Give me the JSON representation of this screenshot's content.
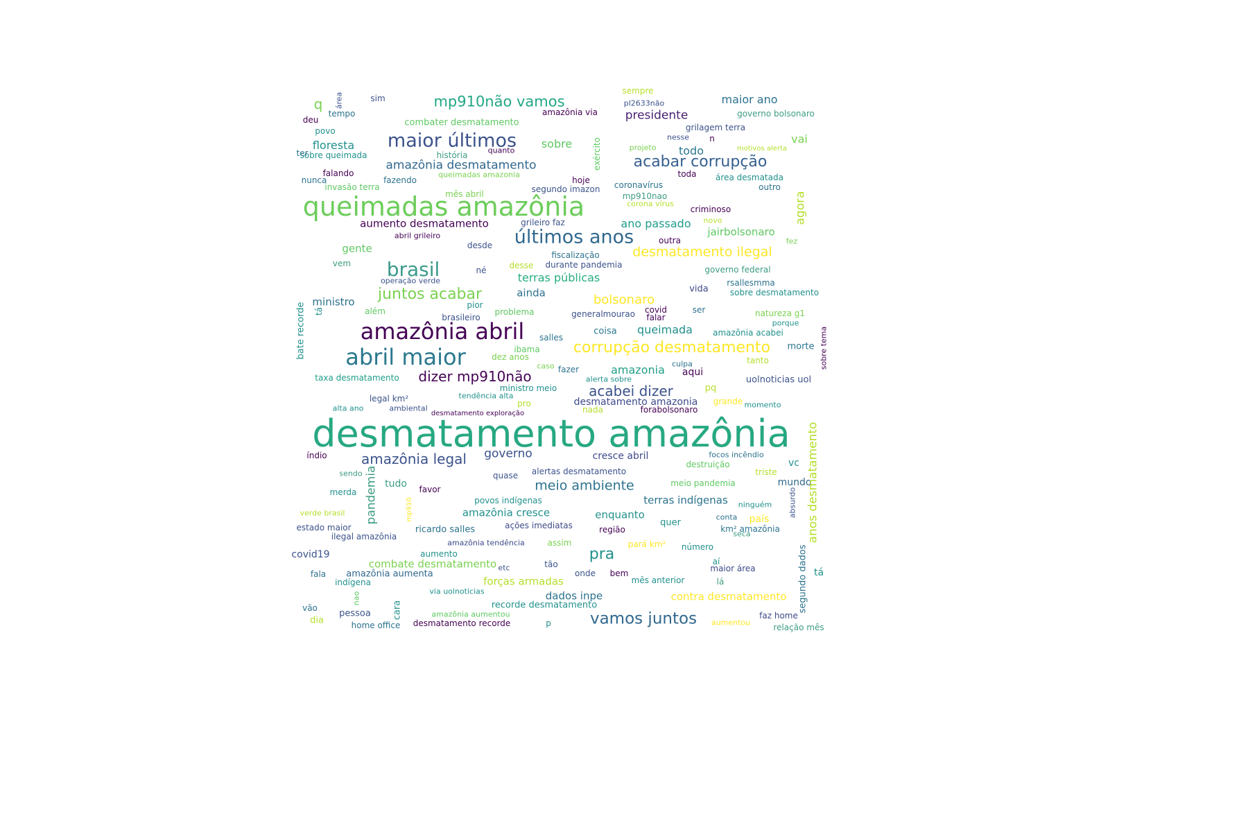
{
  "palette": {
    "c1": "#440154",
    "c2": "#472d7b",
    "c3": "#3b528b",
    "c4": "#2c728e",
    "c5": "#21918c",
    "c6": "#28ae80",
    "c7": "#5ec962",
    "c8": "#addc30",
    "c9": "#fde725"
  },
  "words": [
    {
      "text": "desmatamento amazônia",
      "c": "#27a882"
    },
    {
      "text": "queimadas amazônia",
      "c": "#6ccd5a"
    },
    {
      "text": "amazônia abril",
      "c": "#440154"
    },
    {
      "text": "abril maior",
      "c": "#2a788e"
    },
    {
      "text": "maior últimos",
      "c": "#3b528b"
    },
    {
      "text": "últimos anos",
      "c": "#31688e"
    },
    {
      "text": "brasil",
      "c": "#3a9a8a"
    },
    {
      "text": "corrupção desmatamento",
      "c": "#fde725"
    },
    {
      "text": "acabar corrupção",
      "c": "#355f8d"
    },
    {
      "text": "vamos juntos",
      "c": "#31688e"
    },
    {
      "text": "juntos acabar",
      "c": "#7ad151"
    },
    {
      "text": "mp910não vamos",
      "c": "#22a785"
    },
    {
      "text": "dizer mp910não",
      "c": "#440154"
    },
    {
      "text": "acabei dizer",
      "c": "#3b528b"
    },
    {
      "text": "amazônia legal",
      "c": "#3b528b"
    },
    {
      "text": "desmatamento ilegal",
      "c": "#fde725"
    },
    {
      "text": "pra",
      "c": "#21918c"
    },
    {
      "text": "meio ambiente",
      "c": "#2c728e"
    },
    {
      "text": "bolsonaro",
      "c": "#fde725"
    },
    {
      "text": "amazônia desmatamento",
      "c": "#31688e"
    },
    {
      "text": "presidente",
      "c": "#482173"
    },
    {
      "text": "maior ano",
      "c": "#2c728e"
    },
    {
      "text": "floresta",
      "c": "#21918c"
    },
    {
      "text": "sobre",
      "c": "#5ec962"
    },
    {
      "text": "todo",
      "c": "#2a788e"
    },
    {
      "text": "vai",
      "c": "#7ad151"
    },
    {
      "text": "q",
      "c": "#7ad151"
    },
    {
      "text": "governo",
      "c": "#3b528b"
    },
    {
      "text": "ano passado",
      "c": "#1f9e89"
    },
    {
      "text": "aumento desmatamento",
      "c": "#440154"
    },
    {
      "text": "jairbolsonaro",
      "c": "#5ec962"
    },
    {
      "text": "terras públicas",
      "c": "#27ad81"
    },
    {
      "text": "ainda",
      "c": "#2c728e"
    },
    {
      "text": "queimada",
      "c": "#21918c"
    },
    {
      "text": "amazonia",
      "c": "#1f9e89"
    },
    {
      "text": "desmatamento amazonia",
      "c": "#3e4a89"
    },
    {
      "text": "terras indígenas",
      "c": "#2c728e"
    },
    {
      "text": "amazônia cresce",
      "c": "#21918c"
    },
    {
      "text": "enquanto",
      "c": "#21918c"
    },
    {
      "text": "forças armadas",
      "c": "#b5de2b"
    },
    {
      "text": "dados inpe",
      "c": "#2c728e"
    },
    {
      "text": "contra desmatamento",
      "c": "#fde725"
    },
    {
      "text": "combate desmatamento",
      "c": "#7ad151"
    },
    {
      "text": "recorde desmatamento",
      "c": "#21918c"
    },
    {
      "text": "amazônia aumenta",
      "c": "#31688e"
    },
    {
      "text": "ilegal amazônia",
      "c": "#3b528b"
    },
    {
      "text": "ricardo salles",
      "c": "#2c728e"
    },
    {
      "text": "covid19",
      "c": "#3b528b"
    },
    {
      "text": "tudo",
      "c": "#3e9c83"
    },
    {
      "text": "mundo",
      "c": "#31688e"
    },
    {
      "text": "vc",
      "c": "#21918c"
    },
    {
      "text": "cresce abril",
      "c": "#3e4a89"
    },
    {
      "text": "combater desmatamento",
      "c": "#5ec962"
    },
    {
      "text": "gente",
      "c": "#5ec962"
    },
    {
      "text": "ministro",
      "c": "#2c728e"
    },
    {
      "text": "aqui",
      "c": "#440154"
    },
    {
      "text": "coisa",
      "c": "#2a788e"
    },
    {
      "text": "amazônia acabei",
      "c": "#21918c"
    },
    {
      "text": "natureza g1",
      "c": "#7ad151"
    },
    {
      "text": "morte",
      "c": "#2c728e"
    },
    {
      "text": "uolnoticias uol",
      "c": "#3b528b"
    },
    {
      "text": "taxa desmatamento",
      "c": "#1f9e89"
    },
    {
      "text": "governo federal",
      "c": "#3e9c83"
    },
    {
      "text": "rsallesmma",
      "c": "#2c728e"
    },
    {
      "text": "sobre desmatamento",
      "c": "#21918c"
    },
    {
      "text": "vida",
      "c": "#3e4a89"
    },
    {
      "text": "pq",
      "c": "#b5de2b"
    },
    {
      "text": "grande",
      "c": "#fde725"
    },
    {
      "text": "país",
      "c": "#fde725"
    },
    {
      "text": "dia",
      "c": "#b5de2b"
    },
    {
      "text": "pessoa",
      "c": "#3b528b"
    },
    {
      "text": "tá",
      "c": "#21918c"
    },
    {
      "text": "região",
      "c": "#440154"
    },
    {
      "text": "quer",
      "c": "#21918c"
    },
    {
      "text": "meio pandemia",
      "c": "#5ec962"
    },
    {
      "text": "destruição",
      "c": "#5ec962"
    },
    {
      "text": "focos incêndio",
      "c": "#2c728e"
    },
    {
      "text": "alertas desmatamento",
      "c": "#3b528b"
    },
    {
      "text": "povos indígenas",
      "c": "#21918c"
    },
    {
      "text": "ações imediatas",
      "c": "#3e4a89"
    },
    {
      "text": "quase",
      "c": "#3b528b"
    },
    {
      "text": "favor",
      "c": "#440154"
    },
    {
      "text": "merda",
      "c": "#21918c"
    },
    {
      "text": "sendo",
      "c": "#3e9c83"
    },
    {
      "text": "índio",
      "c": "#440154"
    },
    {
      "text": "verde brasil",
      "c": "#b5de2b"
    },
    {
      "text": "estado maior",
      "c": "#3b528b"
    },
    {
      "text": "fala",
      "c": "#2c728e"
    },
    {
      "text": "indígena",
      "c": "#21918c"
    },
    {
      "text": "vão",
      "c": "#2c728e"
    },
    {
      "text": "home office",
      "c": "#2c728e"
    },
    {
      "text": "desmatamento recorde",
      "c": "#440154"
    },
    {
      "text": "amazônia aumentou",
      "c": "#5ec962"
    },
    {
      "text": "via uolnoticias",
      "c": "#21918c"
    },
    {
      "text": "faz home",
      "c": "#3e4a89"
    },
    {
      "text": "aumentou",
      "c": "#fde725"
    },
    {
      "text": "relação mês",
      "c": "#3e9c83"
    },
    {
      "text": "segundo dados",
      "c": "#2c728e"
    },
    {
      "text": "mês anterior",
      "c": "#21918c"
    },
    {
      "text": "lá",
      "c": "#3e9c83"
    },
    {
      "text": "maior área",
      "c": "#3e4a89"
    },
    {
      "text": "aí",
      "c": "#21918c"
    },
    {
      "text": "número",
      "c": "#21918c"
    },
    {
      "text": "pará km²",
      "c": "#fde725"
    },
    {
      "text": "km² amazônia",
      "c": "#2c728e"
    },
    {
      "text": "conta",
      "c": "#2c728e"
    },
    {
      "text": "seca",
      "c": "#3e9c83"
    },
    {
      "text": "ninguém",
      "c": "#21918c"
    },
    {
      "text": "triste",
      "c": "#b5de2b"
    },
    {
      "text": "onde",
      "c": "#3b528b"
    },
    {
      "text": "bem",
      "c": "#440154"
    },
    {
      "text": "tão",
      "c": "#3b528b"
    },
    {
      "text": "etc",
      "c": "#3b528b"
    },
    {
      "text": "aumento",
      "c": "#21918c"
    },
    {
      "text": "assim",
      "c": "#7ad151"
    },
    {
      "text": "amazônia tendência",
      "c": "#3e4a89"
    },
    {
      "text": "p",
      "c": "#21918c"
    },
    {
      "text": "alta ano",
      "c": "#21918c"
    },
    {
      "text": "ambiental",
      "c": "#3b528b"
    },
    {
      "text": "legal km²",
      "c": "#3b528b"
    },
    {
      "text": "tendência alta",
      "c": "#21918c"
    },
    {
      "text": "desmatamento exploração",
      "c": "#440154"
    },
    {
      "text": "nada",
      "c": "#b5de2b"
    },
    {
      "text": "pro",
      "c": "#b5de2b"
    },
    {
      "text": "ministro meio",
      "c": "#21918c"
    },
    {
      "text": "alerta sobre",
      "c": "#21918c"
    },
    {
      "text": "fazer",
      "c": "#2c728e"
    },
    {
      "text": "caso",
      "c": "#7ad151"
    },
    {
      "text": "culpa",
      "c": "#2c728e"
    },
    {
      "text": "forabolsonaro",
      "c": "#440154"
    },
    {
      "text": "momento",
      "c": "#21918c"
    },
    {
      "text": "dez anos",
      "c": "#7ad151"
    },
    {
      "text": "ibama",
      "c": "#5ec962"
    },
    {
      "text": "salles",
      "c": "#2c728e"
    },
    {
      "text": "tanto",
      "c": "#b5de2b"
    },
    {
      "text": "porque",
      "c": "#21918c"
    },
    {
      "text": "generalmourao",
      "c": "#3b528b"
    },
    {
      "text": "falar",
      "c": "#440154"
    },
    {
      "text": "covid",
      "c": "#440154"
    },
    {
      "text": "ser",
      "c": "#2c728e"
    },
    {
      "text": "brasileiro",
      "c": "#3b528b"
    },
    {
      "text": "problema",
      "c": "#5ec962"
    },
    {
      "text": "além",
      "c": "#5ec962"
    },
    {
      "text": "pior",
      "c": "#21918c"
    },
    {
      "text": "operação verde",
      "c": "#3b528b"
    },
    {
      "text": "desse",
      "c": "#b5de2b"
    },
    {
      "text": "durante pandemia",
      "c": "#3b528b"
    },
    {
      "text": "fiscalização",
      "c": "#2c728e"
    },
    {
      "text": "né",
      "c": "#3b528b"
    },
    {
      "text": "vem",
      "c": "#3e9c83"
    },
    {
      "text": "desde",
      "c": "#3b528b"
    },
    {
      "text": "abril grileiro",
      "c": "#440154"
    },
    {
      "text": "grileiro faz",
      "c": "#3b528b"
    },
    {
      "text": "outra",
      "c": "#440154"
    },
    {
      "text": "fez",
      "c": "#7ad151"
    },
    {
      "text": "novo",
      "c": "#b5de2b"
    },
    {
      "text": "criminoso",
      "c": "#440154"
    },
    {
      "text": "corona vírus",
      "c": "#b5de2b"
    },
    {
      "text": "mp910nao",
      "c": "#3e9c83"
    },
    {
      "text": "coronavírus",
      "c": "#2c728e"
    },
    {
      "text": "segundo imazon",
      "c": "#3b528b"
    },
    {
      "text": "hoje",
      "c": "#440154"
    },
    {
      "text": "mês abril",
      "c": "#7ad151"
    },
    {
      "text": "queimadas amazonia",
      "c": "#7ad151"
    },
    {
      "text": "fazendo",
      "c": "#2c728e"
    },
    {
      "text": "falando",
      "c": "#440154"
    },
    {
      "text": "nunca",
      "c": "#2c728e"
    },
    {
      "text": "invasão terra",
      "c": "#5ec962"
    },
    {
      "text": "toda",
      "c": "#440154"
    },
    {
      "text": "área desmatada",
      "c": "#21918c"
    },
    {
      "text": "outro",
      "c": "#2c728e"
    },
    {
      "text": "história",
      "c": "#3e9c83"
    },
    {
      "text": "quanto",
      "c": "#440154"
    },
    {
      "text": "sobre queimada",
      "c": "#21918c"
    },
    {
      "text": "ter",
      "c": "#2c728e"
    },
    {
      "text": "projeto",
      "c": "#7ad151"
    },
    {
      "text": "motivos alerta",
      "c": "#b5de2b"
    },
    {
      "text": "nesse",
      "c": "#3b528b"
    },
    {
      "text": "n",
      "c": "#440154"
    },
    {
      "text": "grilagem terra",
      "c": "#3b528b"
    },
    {
      "text": "povo",
      "c": "#21918c"
    },
    {
      "text": "deu",
      "c": "#440154"
    },
    {
      "text": "tempo",
      "c": "#2c728e"
    },
    {
      "text": "sim",
      "c": "#3b528b"
    },
    {
      "text": "amazônia via",
      "c": "#440154"
    },
    {
      "text": "sempre",
      "c": "#b5de2b"
    },
    {
      "text": "pl2633não",
      "c": "#3b528b"
    },
    {
      "text": "governo bolsonaro",
      "c": "#3e9c83"
    },
    {
      "text": "área",
      "c": "#3b528b"
    },
    {
      "text": "exército",
      "c": "#5ec962"
    },
    {
      "text": "agora",
      "c": "#b5de2b"
    },
    {
      "text": "bate recorde",
      "c": "#21918c"
    },
    {
      "text": "tá",
      "c": "#21918c"
    },
    {
      "text": "pandemia",
      "c": "#3e9c83"
    },
    {
      "text": "mp910",
      "c": "#fde725"
    },
    {
      "text": "nao",
      "c": "#5ec962"
    },
    {
      "text": "cara",
      "c": "#21918c"
    },
    {
      "text": "anos desmatamento",
      "c": "#b5de2b"
    },
    {
      "text": "absurdo",
      "c": "#3b528b"
    },
    {
      "text": "sobre tema",
      "c": "#440154"
    }
  ]
}
